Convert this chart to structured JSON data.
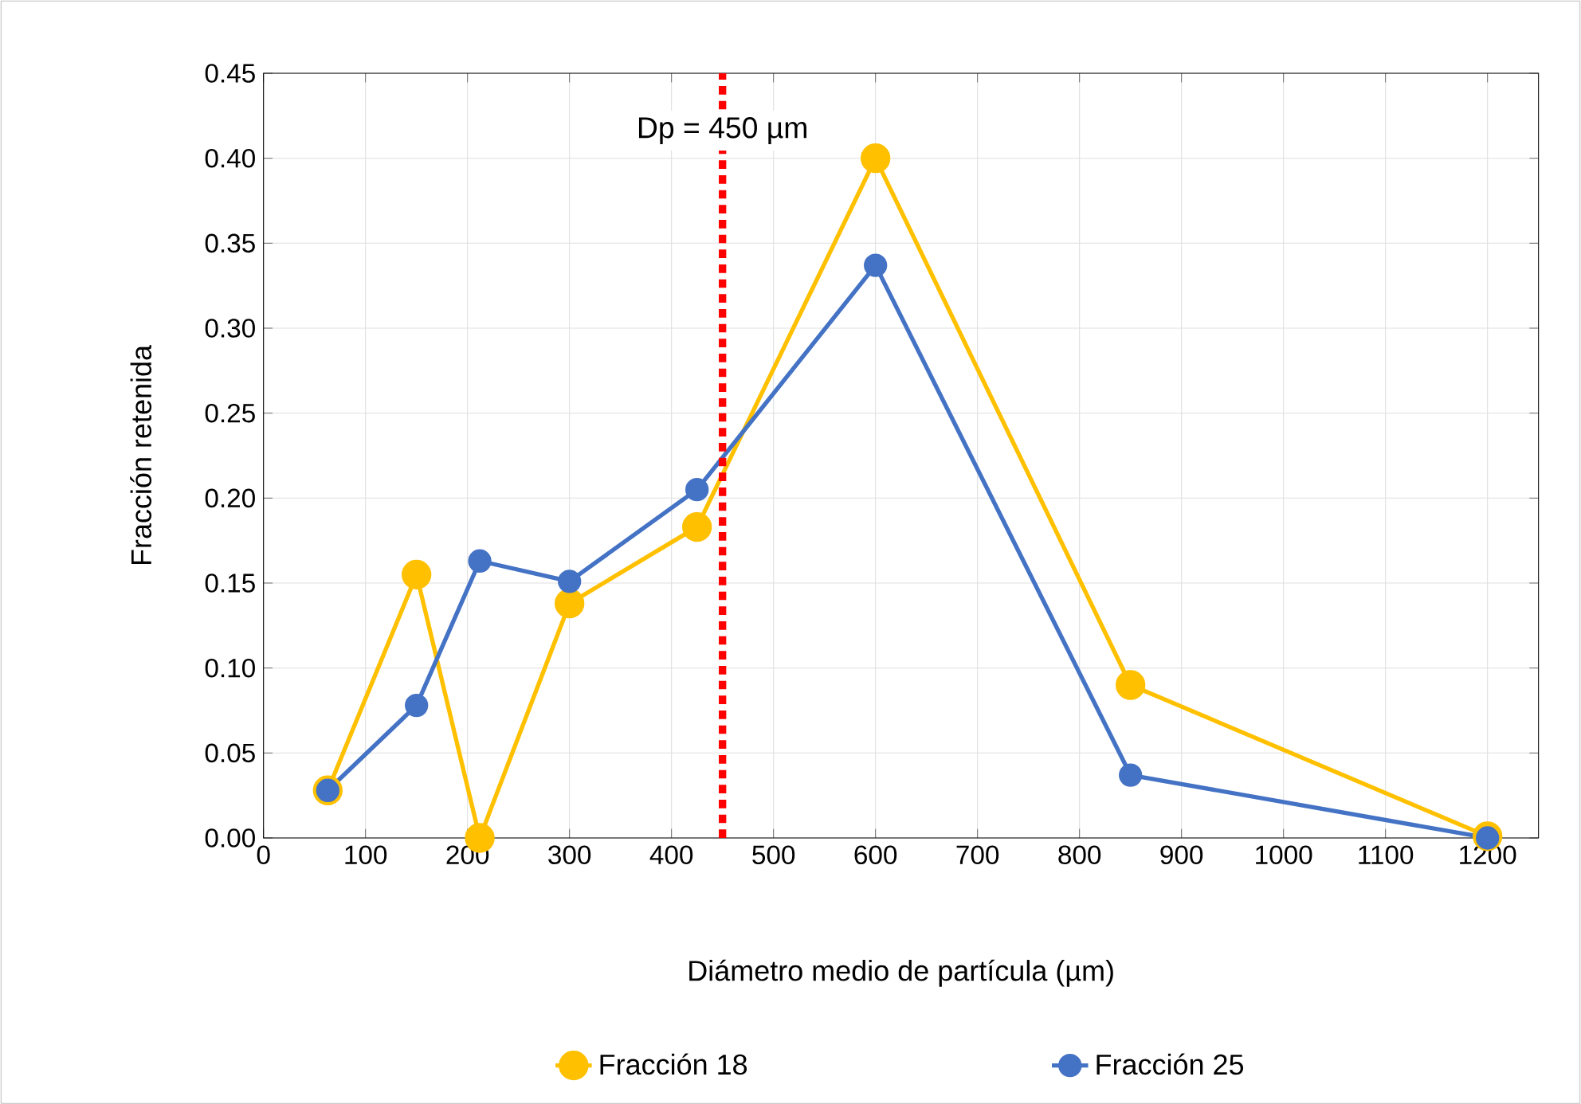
{
  "chart_data": {
    "type": "line",
    "xlabel": "Diámetro medio de partícula (µm)",
    "ylabel": "Fracción retenida",
    "x": [
      63,
      150,
      212,
      300,
      425,
      600,
      850,
      1200
    ],
    "series": [
      {
        "name": "Fracción 18",
        "color": "#ffc000",
        "values": [
          0.028,
          0.155,
          0.0,
          0.138,
          0.183,
          0.4,
          0.09,
          0.001
        ]
      },
      {
        "name": "Fracción 25",
        "color": "#4472c4",
        "values": [
          0.028,
          0.078,
          0.163,
          0.151,
          0.205,
          0.337,
          0.037,
          0.0
        ]
      }
    ],
    "xlim": [
      0,
      1250
    ],
    "xticks": [
      0,
      100,
      200,
      300,
      400,
      500,
      600,
      700,
      800,
      900,
      1000,
      1100,
      1200
    ],
    "ylim": [
      0,
      0.45
    ],
    "yticks": [
      {
        "value": 0,
        "label": "0.00"
      },
      {
        "value": 0.05,
        "label": "0.05"
      },
      {
        "value": 0.1,
        "label": "0.10"
      },
      {
        "value": 0.15,
        "label": "0.15"
      },
      {
        "value": 0.2,
        "label": "0.20"
      },
      {
        "value": 0.25,
        "label": "0.25"
      },
      {
        "value": 0.3,
        "label": "0.30"
      },
      {
        "value": 0.35,
        "label": "0.35"
      },
      {
        "value": 0.4,
        "label": "0.40"
      },
      {
        "value": 0.45,
        "label": "0.45"
      }
    ],
    "ref_lines": [
      {
        "axis": "x",
        "value": 450,
        "label": "Dp = 450 µm",
        "color": "#ff0000",
        "line_style": "dotted"
      }
    ],
    "grid": true,
    "legend": "bottom",
    "marker": "circle",
    "line_style": "solid"
  }
}
